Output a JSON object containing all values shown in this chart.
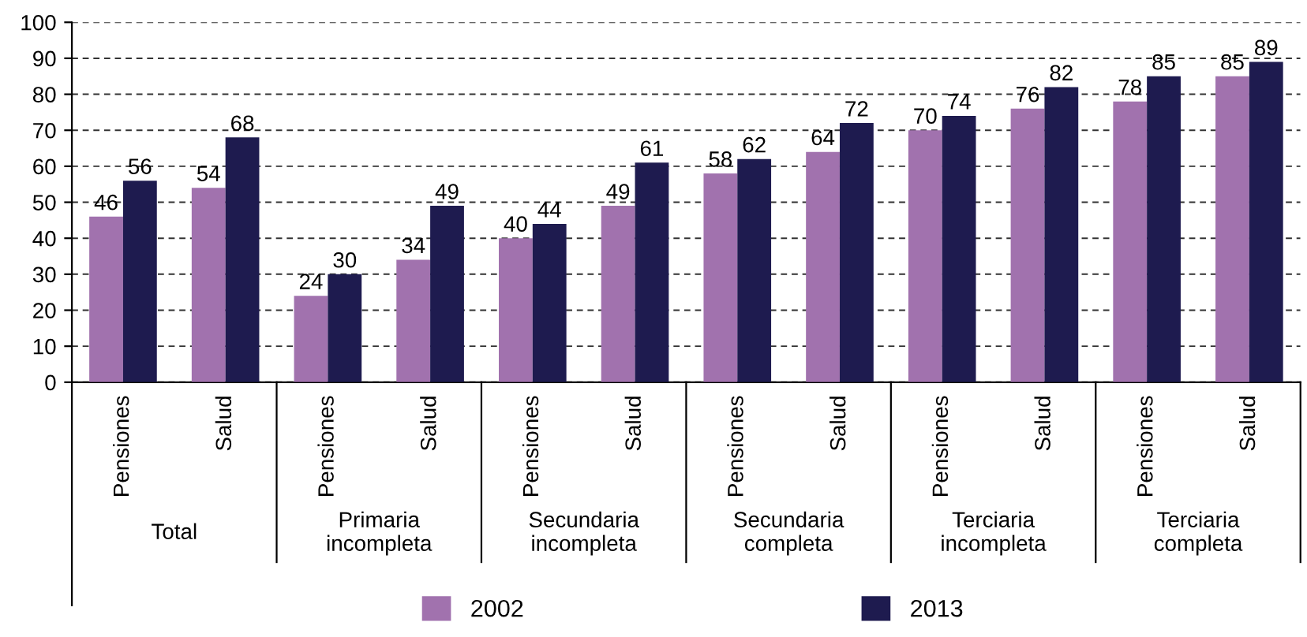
{
  "chart_data": {
    "type": "bar",
    "categories": [
      "Pensiones",
      "Salud",
      "Pensiones",
      "Salud",
      "Pensiones",
      "Salud",
      "Pensiones",
      "Salud",
      "Pensiones",
      "Salud",
      "Pensiones",
      "Salud"
    ],
    "annotations": [
      "Total",
      "Primaria\nincompleta",
      "Secundaria\nincompleta",
      "Secundaria\ncompleta",
      "Terciaria\nincompleta",
      "Terciaria\ncompleta"
    ],
    "series": [
      {
        "name": "2002",
        "color": "#a172ae",
        "values": [
          46,
          54,
          24,
          34,
          40,
          49,
          58,
          64,
          70,
          76,
          78,
          85
        ]
      },
      {
        "name": "2013",
        "color": "#1e1b4f",
        "values": [
          56,
          68,
          30,
          49,
          44,
          61,
          62,
          72,
          74,
          82,
          85,
          89
        ]
      }
    ],
    "ylim": [
      0,
      100
    ],
    "yticks": [
      0,
      10,
      20,
      30,
      40,
      50,
      60,
      70,
      80,
      90,
      100
    ],
    "grid": "y",
    "legend": "bottom",
    "data_labels": true
  }
}
